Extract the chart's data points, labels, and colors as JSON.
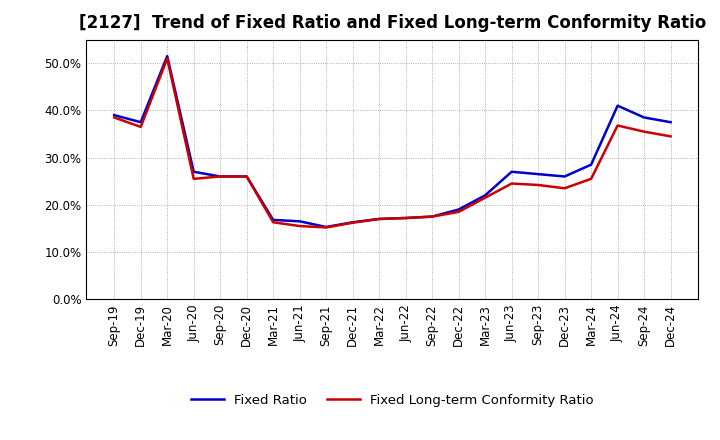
{
  "title": "[2127]  Trend of Fixed Ratio and Fixed Long-term Conformity Ratio",
  "x_labels": [
    "Sep-19",
    "Dec-19",
    "Mar-20",
    "Jun-20",
    "Sep-20",
    "Dec-20",
    "Mar-21",
    "Jun-21",
    "Sep-21",
    "Dec-21",
    "Mar-22",
    "Jun-22",
    "Sep-22",
    "Dec-22",
    "Mar-23",
    "Jun-23",
    "Sep-23",
    "Dec-23",
    "Mar-24",
    "Jun-24",
    "Sep-24",
    "Dec-24"
  ],
  "fixed_ratio": [
    0.39,
    0.375,
    0.515,
    0.27,
    0.26,
    0.26,
    0.168,
    0.165,
    0.153,
    0.163,
    0.17,
    0.172,
    0.175,
    0.19,
    0.22,
    0.27,
    0.265,
    0.26,
    0.285,
    0.41,
    0.385,
    0.375
  ],
  "fixed_lt_ratio": [
    0.385,
    0.365,
    0.51,
    0.255,
    0.26,
    0.26,
    0.163,
    0.155,
    0.152,
    0.162,
    0.17,
    0.172,
    0.175,
    0.185,
    0.215,
    0.245,
    0.242,
    0.235,
    0.255,
    0.368,
    0.355,
    0.345
  ],
  "line_color_fixed": "#0000cc",
  "line_color_lt": "#cc0000",
  "ylim": [
    0.0,
    0.55
  ],
  "yticks": [
    0.0,
    0.1,
    0.2,
    0.3,
    0.4,
    0.5
  ],
  "background_color": "#ffffff",
  "grid_color": "#999999",
  "legend_fixed": "Fixed Ratio",
  "legend_lt": "Fixed Long-term Conformity Ratio",
  "title_fontsize": 12,
  "axis_fontsize": 8.5,
  "legend_fontsize": 9.5
}
